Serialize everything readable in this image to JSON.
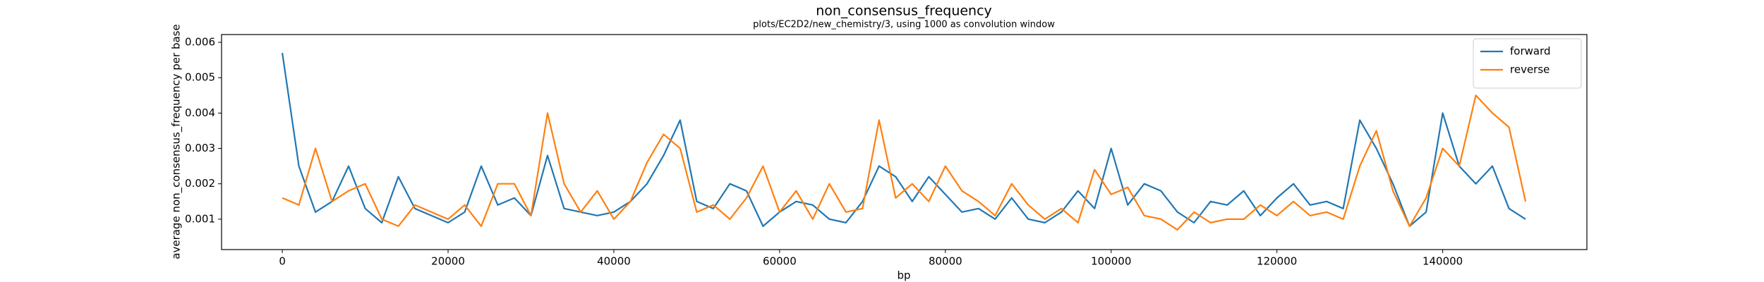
{
  "chart_data": {
    "type": "line",
    "title": "non_consensus_frequency",
    "subtitle": "plots/EC2D2/new_chemistry/3, using 1000 as convolution window",
    "x_label": "bp",
    "y_label": "average non_consensus_frequency per base",
    "x": [
      0,
      2000,
      4000,
      6000,
      8000,
      10000,
      12000,
      14000,
      16000,
      18000,
      20000,
      22000,
      24000,
      26000,
      28000,
      30000,
      32000,
      34000,
      36000,
      38000,
      40000,
      42000,
      44000,
      46000,
      48000,
      50000,
      52000,
      54000,
      56000,
      58000,
      60000,
      62000,
      64000,
      66000,
      68000,
      70000,
      72000,
      74000,
      76000,
      78000,
      80000,
      82000,
      84000,
      86000,
      88000,
      90000,
      92000,
      94000,
      96000,
      98000,
      100000,
      102000,
      104000,
      106000,
      108000,
      110000,
      112000,
      114000,
      116000,
      118000,
      120000,
      122000,
      124000,
      126000,
      128000,
      130000,
      132000,
      134000,
      136000,
      138000,
      140000,
      142000,
      144000,
      146000,
      148000,
      150000
    ],
    "series": [
      {
        "name": "forward",
        "color": "#1f77b4",
        "values": [
          0.0057,
          0.0025,
          0.0012,
          0.0015,
          0.0025,
          0.0013,
          0.0009,
          0.0022,
          0.0013,
          0.0011,
          0.0009,
          0.0012,
          0.0025,
          0.0014,
          0.0016,
          0.0011,
          0.0028,
          0.0013,
          0.0012,
          0.0011,
          0.0012,
          0.0015,
          0.002,
          0.0028,
          0.0038,
          0.0015,
          0.0013,
          0.002,
          0.0018,
          0.0008,
          0.0012,
          0.0015,
          0.0014,
          0.001,
          0.0009,
          0.0015,
          0.0025,
          0.0022,
          0.0015,
          0.0022,
          0.0017,
          0.0012,
          0.0013,
          0.001,
          0.0016,
          0.001,
          0.0009,
          0.0012,
          0.0018,
          0.0013,
          0.003,
          0.0014,
          0.002,
          0.0018,
          0.0012,
          0.0009,
          0.0015,
          0.0014,
          0.0018,
          0.0011,
          0.0016,
          0.002,
          0.0014,
          0.0015,
          0.0013,
          0.0038,
          0.003,
          0.002,
          0.0008,
          0.0012,
          0.004,
          0.0025,
          0.002,
          0.0025,
          0.0013,
          0.001
        ]
      },
      {
        "name": "reverse",
        "color": "#ff7f0e",
        "values": [
          0.0016,
          0.0014,
          0.003,
          0.0015,
          0.0018,
          0.002,
          0.001,
          0.0008,
          0.0014,
          0.0012,
          0.001,
          0.0014,
          0.0008,
          0.002,
          0.002,
          0.0011,
          0.004,
          0.002,
          0.0012,
          0.0018,
          0.001,
          0.0015,
          0.0026,
          0.0034,
          0.003,
          0.0012,
          0.0014,
          0.001,
          0.0016,
          0.0025,
          0.0012,
          0.0018,
          0.001,
          0.002,
          0.0012,
          0.0013,
          0.0038,
          0.0016,
          0.002,
          0.0015,
          0.0025,
          0.0018,
          0.0015,
          0.0011,
          0.002,
          0.0014,
          0.001,
          0.0013,
          0.0009,
          0.0024,
          0.0017,
          0.0019,
          0.0011,
          0.001,
          0.0007,
          0.0012,
          0.0009,
          0.001,
          0.001,
          0.0014,
          0.0011,
          0.0015,
          0.0011,
          0.0012,
          0.001,
          0.0025,
          0.0035,
          0.0018,
          0.0008,
          0.0016,
          0.003,
          0.0025,
          0.0045,
          0.004,
          0.0036,
          0.0015
        ]
      }
    ],
    "xlim": [
      -7330,
      157400
    ],
    "ylim": [
      0.00014,
      0.00622
    ],
    "xticks": [
      0,
      20000,
      40000,
      60000,
      80000,
      100000,
      120000,
      140000
    ],
    "yticks": [
      0.001,
      0.002,
      0.003,
      0.004,
      0.005,
      0.006
    ],
    "grid": false,
    "legend": "upper right"
  }
}
